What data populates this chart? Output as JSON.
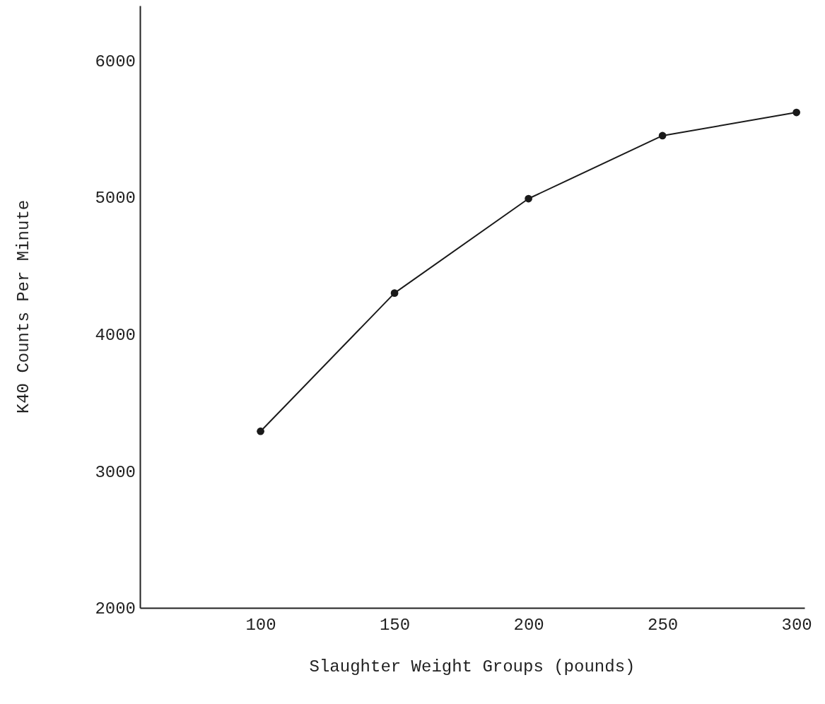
{
  "chart_data": {
    "type": "line",
    "xlabel": "Slaughter Weight Groups (pounds)",
    "ylabel": "K40 Counts Per Minute",
    "x": [
      100,
      150,
      200,
      250,
      300
    ],
    "series": [
      {
        "color": "#1a1a1a",
        "values": [
          3290,
          4300,
          4990,
          5450,
          5620
        ]
      }
    ],
    "xlim": [
      55,
      303
    ],
    "xticks": [
      100,
      150,
      200,
      250,
      300
    ],
    "ylim": [
      2000,
      6400
    ],
    "yticks": [
      2000,
      3000,
      4000,
      5000,
      6000
    ],
    "grid": false,
    "marker": "circle",
    "line_style": "solid"
  }
}
